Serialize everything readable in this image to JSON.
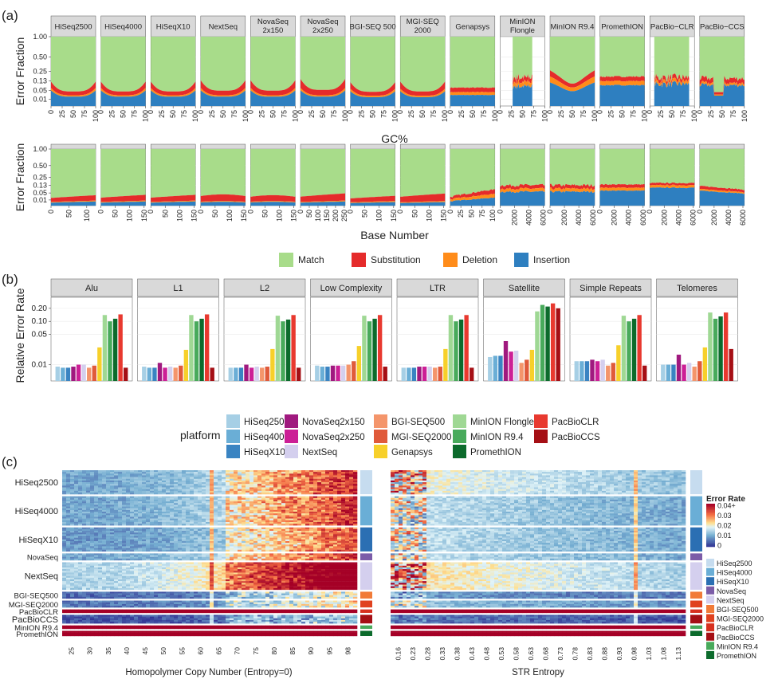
{
  "panel_labels": {
    "a": "(a)",
    "b": "(b)",
    "c": "(c)"
  },
  "colors": {
    "match": "#a8dc8a",
    "substitution": "#e52b2b",
    "deletion": "#ff8c1a",
    "insertion": "#2e7fc0",
    "strip_bg": "#d9d9d9",
    "panel_bg": "#ffffff",
    "grid": "#ebebeb"
  },
  "chart_data": [
    {
      "id": "a-top",
      "type": "area",
      "title": "",
      "ylabel": "Error Fraction",
      "xlabel": "GC%",
      "y_ticks": [
        "1.00",
        "0.50",
        "0.25",
        "0.13",
        "0.05",
        "0.01"
      ],
      "y_scale": "sqrt",
      "ylim": [
        0,
        1
      ],
      "stack_order": [
        "Insertion",
        "Deletion",
        "Substitution",
        "Match"
      ],
      "facets": [
        {
          "label": "HiSeq2500",
          "x_ticks": [
            "0",
            "25",
            "50",
            "75",
            "100"
          ],
          "xlim": [
            0,
            100
          ],
          "ins": 0.018,
          "del": 0.006,
          "sub": 0.02,
          "shape": "u"
        },
        {
          "label": "HiSeq4000",
          "x_ticks": [
            "0",
            "25",
            "50",
            "75",
            "100"
          ],
          "xlim": [
            0,
            100
          ],
          "ins": 0.018,
          "del": 0.006,
          "sub": 0.02,
          "shape": "u"
        },
        {
          "label": "HiSeqX10",
          "x_ticks": [
            "0",
            "25",
            "50",
            "75",
            "100"
          ],
          "xlim": [
            0,
            100
          ],
          "ins": 0.018,
          "del": 0.006,
          "sub": 0.02,
          "shape": "u"
        },
        {
          "label": "NextSeq",
          "x_ticks": [
            "0",
            "25",
            "50",
            "75",
            "100"
          ],
          "xlim": [
            0,
            100
          ],
          "ins": 0.018,
          "del": 0.006,
          "sub": 0.025,
          "shape": "u"
        },
        {
          "label": "NovaSeq 2x150",
          "x_ticks": [
            "0",
            "25",
            "50",
            "75",
            "100"
          ],
          "xlim": [
            0,
            100
          ],
          "ins": 0.018,
          "del": 0.006,
          "sub": 0.025,
          "shape": "u"
        },
        {
          "label": "NovaSeq 2x250",
          "x_ticks": [
            "0",
            "25",
            "50",
            "75",
            "100"
          ],
          "xlim": [
            0,
            100
          ],
          "ins": 0.018,
          "del": 0.006,
          "sub": 0.03,
          "shape": "u"
        },
        {
          "label": "BGI-SEQ 500",
          "x_ticks": [
            "0",
            "25",
            "50",
            "75",
            "100"
          ],
          "xlim": [
            0,
            100
          ],
          "ins": 0.016,
          "del": 0.006,
          "sub": 0.02,
          "shape": "u"
        },
        {
          "label": "MGI-SEQ 2000",
          "x_ticks": [
            "0",
            "25",
            "50",
            "75",
            "100"
          ],
          "xlim": [
            0,
            100
          ],
          "ins": 0.016,
          "del": 0.006,
          "sub": 0.022,
          "shape": "u"
        },
        {
          "label": "Genapsys",
          "x_ticks": [
            "0",
            "25",
            "50",
            "75",
            "100"
          ],
          "xlim": [
            0,
            100
          ],
          "ins": 0.025,
          "del": 0.015,
          "sub": 0.03,
          "shape": "flat"
        },
        {
          "label": "MinION Flongle",
          "x_ticks": [
            "0",
            "25",
            "50",
            "75",
            "100"
          ],
          "xlim": [
            0,
            100
          ],
          "ins": 0.08,
          "del": 0.04,
          "sub": 0.05,
          "shape": "noisy",
          "xrange": [
            28,
            72
          ]
        },
        {
          "label": "MinION R9.4",
          "x_ticks": [
            "0",
            "25",
            "50",
            "75",
            "100"
          ],
          "xlim": [
            0,
            100
          ],
          "ins": 0.07,
          "del": 0.04,
          "sub": 0.05,
          "shape": "wave"
        },
        {
          "label": "PromethION",
          "x_ticks": [
            "0",
            "25",
            "50",
            "75",
            "100"
          ],
          "xlim": [
            0,
            100
          ],
          "ins": 0.09,
          "del": 0.04,
          "sub": 0.05,
          "shape": "flat"
        },
        {
          "label": "PacBio−CLR",
          "x_ticks": [
            "0",
            "25",
            "50",
            "75",
            "100"
          ],
          "xlim": [
            0,
            100
          ],
          "ins": 0.1,
          "del": 0.03,
          "sub": 0.04,
          "shape": "noisy",
          "xrange": [
            10,
            88
          ]
        },
        {
          "label": "PacBio−CCS",
          "x_ticks": [
            "0",
            "25",
            "50",
            "75",
            "100"
          ],
          "xlim": [
            0,
            100
          ],
          "ins": 0.09,
          "del": 0.02,
          "sub": 0.05,
          "shape": "ccs"
        }
      ]
    },
    {
      "id": "a-bottom",
      "type": "area",
      "title": "",
      "ylabel": "Error Fraction",
      "xlabel": "Base Number",
      "y_ticks": [
        "1.00",
        "0.50",
        "0.25",
        "0.13",
        "0.05",
        "0.01"
      ],
      "y_scale": "sqrt",
      "ylim": [
        0,
        1
      ],
      "stack_order": [
        "Insertion",
        "Deletion",
        "Substitution",
        "Match"
      ],
      "facets": [
        {
          "label": "HiSeq2500",
          "x_ticks": [
            "0",
            "50",
            "100"
          ],
          "xlim": [
            0,
            125
          ],
          "ins": 0.004,
          "del": 0.002,
          "sub": 0.02,
          "shape": "rise"
        },
        {
          "label": "HiSeq4000",
          "x_ticks": [
            "0",
            "50",
            "100",
            "150"
          ],
          "xlim": [
            0,
            155
          ],
          "ins": 0.004,
          "del": 0.002,
          "sub": 0.022,
          "shape": "rise"
        },
        {
          "label": "HiSeqX10",
          "x_ticks": [
            "0",
            "50",
            "100",
            "150"
          ],
          "xlim": [
            0,
            155
          ],
          "ins": 0.004,
          "del": 0.002,
          "sub": 0.022,
          "shape": "rise"
        },
        {
          "label": "NextSeq",
          "x_ticks": [
            "0",
            "50",
            "100",
            "150"
          ],
          "xlim": [
            0,
            155
          ],
          "ins": 0.004,
          "del": 0.002,
          "sub": 0.03,
          "shape": "hump"
        },
        {
          "label": "NovaSeq 2x150",
          "x_ticks": [
            "0",
            "50",
            "100",
            "150"
          ],
          "xlim": [
            0,
            155
          ],
          "ins": 0.004,
          "del": 0.002,
          "sub": 0.025,
          "shape": "hump"
        },
        {
          "label": "NovaSeq 2x250",
          "x_ticks": [
            "0",
            "50",
            "100",
            "150",
            "200",
            "250"
          ],
          "xlim": [
            0,
            255
          ],
          "ins": 0.004,
          "del": 0.002,
          "sub": 0.03,
          "shape": "rise"
        },
        {
          "label": "BGI-SEQ 500",
          "x_ticks": [
            "0",
            "50",
            "100",
            "150"
          ],
          "xlim": [
            0,
            155
          ],
          "ins": 0.003,
          "del": 0.002,
          "sub": 0.018,
          "shape": "rise"
        },
        {
          "label": "MGI-SEQ 2000",
          "x_ticks": [
            "0",
            "50",
            "100",
            "150"
          ],
          "xlim": [
            0,
            155
          ],
          "ins": 0.003,
          "del": 0.002,
          "sub": 0.03,
          "shape": "rise"
        },
        {
          "label": "Genapsys",
          "x_ticks": [
            "0",
            "25",
            "50",
            "75",
            "100"
          ],
          "xlim": [
            0,
            105
          ],
          "ins": 0.01,
          "del": 0.012,
          "sub": 0.02,
          "shape": "genarise"
        },
        {
          "label": "MinION Flongle",
          "x_ticks": [
            "0",
            "2000",
            "4000",
            "6000"
          ],
          "xlim": [
            0,
            6200
          ],
          "ins": 0.06,
          "del": 0.03,
          "sub": 0.04,
          "shape": "flatnoisy"
        },
        {
          "label": "MinION R9.4",
          "x_ticks": [
            "0",
            "2000",
            "4000",
            "6000"
          ],
          "xlim": [
            0,
            6200
          ],
          "ins": 0.06,
          "del": 0.03,
          "sub": 0.04,
          "shape": "flatnoisy"
        },
        {
          "label": "PromethION",
          "x_ticks": [
            "0",
            "2000",
            "4000",
            "6000"
          ],
          "xlim": [
            0,
            6200
          ],
          "ins": 0.07,
          "del": 0.03,
          "sub": 0.04,
          "shape": "flat"
        },
        {
          "label": "PacBio−CLR",
          "x_ticks": [
            "0",
            "2000",
            "4000",
            "6000"
          ],
          "xlim": [
            0,
            6200
          ],
          "ins": 0.1,
          "del": 0.03,
          "sub": 0.03,
          "shape": "flat"
        },
        {
          "label": "PacBio−CCS",
          "x_ticks": [
            "0",
            "2000",
            "4000",
            "6000"
          ],
          "xlim": [
            0,
            6200
          ],
          "ins": 0.06,
          "del": 0.015,
          "sub": 0.03,
          "shape": "decline"
        }
      ]
    },
    {
      "id": "b",
      "type": "bar",
      "title": "",
      "ylabel": "Relative Error Rate",
      "y_ticks": [
        "0.20",
        "0.10",
        "0.05",
        "0.01"
      ],
      "y_tick_values": [
        0.2,
        0.1,
        0.05,
        0.01
      ],
      "y_scale": "log",
      "ylim": [
        0.0042,
        0.36
      ],
      "series": [
        "HiSeq2500",
        "HiSeq4000",
        "HiSeqX10",
        "NextSeq",
        "NovaSeq2x150",
        "NovaSeq2x250",
        "BGI-SEQ500",
        "MGI-SEQ2000",
        "Genapsys",
        "MinION Flongle",
        "MinION R9.4",
        "PromethION",
        "PacBioCLR",
        "PacBioCCS"
      ],
      "categories": [
        "Alu",
        "L1",
        "L2",
        "Low Complexity",
        "LTR",
        "Satellite",
        "Simple Repeats",
        "Telomeres"
      ],
      "values": {
        "Alu": [
          0.009,
          0.0085,
          0.0085,
          0.009,
          0.01,
          0.01,
          0.0085,
          0.0095,
          0.025,
          0.14,
          0.1,
          0.115,
          0.145,
          0.0085
        ],
        "L1": [
          0.009,
          0.0085,
          0.0085,
          0.011,
          0.0085,
          0.009,
          0.0085,
          0.0095,
          0.022,
          0.14,
          0.1,
          0.115,
          0.145,
          0.0085
        ],
        "L2": [
          0.0085,
          0.0085,
          0.0085,
          0.01,
          0.0085,
          0.009,
          0.0085,
          0.009,
          0.023,
          0.135,
          0.1,
          0.11,
          0.14,
          0.0085
        ],
        "Low Complexity": [
          0.0095,
          0.009,
          0.009,
          0.0095,
          0.0095,
          0.0095,
          0.01,
          0.012,
          0.027,
          0.135,
          0.1,
          0.115,
          0.14,
          0.009
        ],
        "LTR": [
          0.0085,
          0.0085,
          0.0085,
          0.009,
          0.009,
          0.009,
          0.0085,
          0.009,
          0.023,
          0.14,
          0.1,
          0.11,
          0.14,
          0.0085
        ],
        "Satellite": [
          0.015,
          0.016,
          0.016,
          0.035,
          0.02,
          0.021,
          0.011,
          0.013,
          0.022,
          0.17,
          0.24,
          0.22,
          0.26,
          0.2
        ],
        "Simple Repeats": [
          0.012,
          0.012,
          0.012,
          0.013,
          0.012,
          0.013,
          0.0095,
          0.011,
          0.028,
          0.135,
          0.1,
          0.115,
          0.14,
          0.0095
        ],
        "Telomeres": [
          0.01,
          0.01,
          0.01,
          0.017,
          0.01,
          0.011,
          0.009,
          0.012,
          0.025,
          0.16,
          0.115,
          0.13,
          0.16,
          0.023
        ]
      }
    },
    {
      "id": "c",
      "type": "heatmap",
      "title": "",
      "left_xlabel": "Homopolymer Copy Number (Entropy=0)",
      "right_xlabel": "STR Entropy",
      "left_x_ticks": [
        "25",
        "30",
        "35",
        "40",
        "45",
        "50",
        "55",
        "60",
        "65",
        "70",
        "75",
        "80",
        "85",
        "90",
        "95",
        "98"
      ],
      "right_x_ticks": [
        "0.16",
        "0.23",
        "0.28",
        "0.33",
        "0.38",
        "0.43",
        "0.48",
        "0.53",
        "0.58",
        "0.63",
        "0.68",
        "0.73",
        "0.78",
        "0.83",
        "0.88",
        "0.93",
        "0.98",
        "1.03",
        "1.08",
        "1.13"
      ],
      "row_labels": [
        "HiSeq2500",
        "HiSeq4000",
        "HiSeqX10",
        "NovaSeq",
        "NextSeq",
        "BGI-SEQ500",
        "MGI-SEQ2000",
        "PacBioCLR",
        "PacBioCCS",
        "MinION R9.4",
        "PromethION"
      ],
      "legend_title": "Error Rate",
      "legend_ticks": [
        "0.04+",
        "0.03",
        "0.02",
        "0.01",
        "0"
      ],
      "legend_range": [
        0,
        0.04
      ],
      "row_sample_counts": [
        14,
        17,
        14,
        4,
        16,
        4,
        4,
        2,
        5,
        2,
        3
      ],
      "row_mean_error_left": [
        0.016,
        0.016,
        0.014,
        0.016,
        0.024,
        0.007,
        0.009,
        0.04,
        0.004,
        0.04,
        0.04
      ],
      "row_mean_error_right": [
        0.016,
        0.013,
        0.013,
        0.013,
        0.018,
        0.007,
        0.01,
        0.04,
        0.004,
        0.04,
        0.04
      ]
    }
  ],
  "fill_legend": {
    "items": [
      {
        "label": "Match",
        "color": "#a8dc8a"
      },
      {
        "label": "Substitution",
        "color": "#e52b2b"
      },
      {
        "label": "Deletion",
        "color": "#ff8c1a"
      },
      {
        "label": "Insertion",
        "color": "#2e7fc0"
      }
    ]
  },
  "platform_legend": {
    "title": "platform",
    "items": [
      {
        "label": "HiSeq2500",
        "color": "#a6cfe5"
      },
      {
        "label": "HiSeq4000",
        "color": "#6aaed6"
      },
      {
        "label": "HiSeqX10",
        "color": "#3a84c2"
      },
      {
        "label": "NovaSeq2x150",
        "color": "#a0197f"
      },
      {
        "label": "NovaSeq2x250",
        "color": "#cc1f96"
      },
      {
        "label": "NextSeq",
        "color": "#d4cfee"
      },
      {
        "label": "BGI-SEQ500",
        "color": "#f4956b"
      },
      {
        "label": "MGI-SEQ2000",
        "color": "#e05a3a"
      },
      {
        "label": "Genapsys",
        "color": "#f7d02a"
      },
      {
        "label": "MinION Flongle",
        "color": "#9fd894"
      },
      {
        "label": "MinION R9.4",
        "color": "#48aa5b"
      },
      {
        "label": "PromethION",
        "color": "#0c6b2c"
      },
      {
        "label": "PacBioCLR",
        "color": "#e8392f"
      },
      {
        "label": "PacBioCCS",
        "color": "#a50f15"
      }
    ]
  },
  "heatmap_platform_legend": {
    "items": [
      {
        "label": "HiSeq2500",
        "color": "#c6dcef"
      },
      {
        "label": "HiSeq4000",
        "color": "#6aaed6"
      },
      {
        "label": "HiSeqX10",
        "color": "#2b6fb3"
      },
      {
        "label": "NovaSeq",
        "color": "#7b5ca8"
      },
      {
        "label": "NextSeq",
        "color": "#d4cfee"
      },
      {
        "label": "BGI-SEQ500",
        "color": "#f17b38"
      },
      {
        "label": "MGI-SEQ2000",
        "color": "#e0421f"
      },
      {
        "label": "PacBioCLR",
        "color": "#d7301f"
      },
      {
        "label": "PacBioCCS",
        "color": "#a50f15"
      },
      {
        "label": "MinION R9.4",
        "color": "#48aa5b"
      },
      {
        "label": "PromethION",
        "color": "#0c6b2c"
      }
    ]
  }
}
